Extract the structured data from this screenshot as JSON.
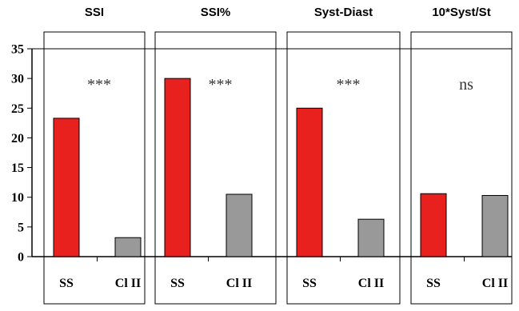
{
  "chart_data": {
    "type": "bar",
    "ylim": [
      0,
      35
    ],
    "yticks": [
      "0",
      "5",
      "10",
      "15",
      "20",
      "25",
      "30",
      "35"
    ],
    "categories": [
      "SS",
      "Cl II"
    ],
    "category_colors": [
      "#e8211f",
      "#999999"
    ],
    "grid": false,
    "panels": [
      {
        "title": "SSI",
        "annotation": "***",
        "values": [
          23.3,
          3.2
        ]
      },
      {
        "title": "SSI%",
        "annotation": "***",
        "values": [
          30.0,
          10.5
        ]
      },
      {
        "title": "Syst-Diast",
        "annotation": "***",
        "values": [
          25.0,
          6.3
        ]
      },
      {
        "title": "10*Syst/St",
        "annotation": "ns",
        "values": [
          10.6,
          10.3
        ]
      }
    ]
  }
}
